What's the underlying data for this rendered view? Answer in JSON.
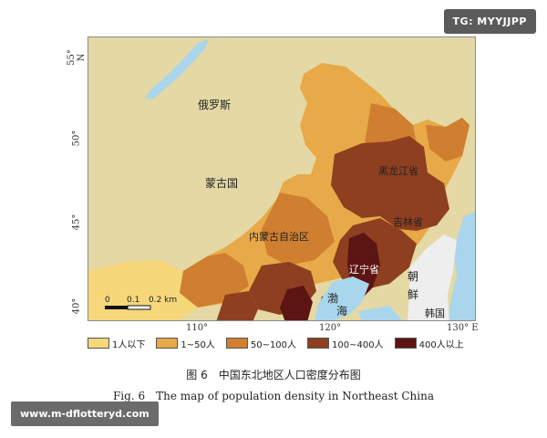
{
  "watermarks": {
    "top_right": "TG: MYYJJPP",
    "bottom_left": "www.m-dflotteryd.com"
  },
  "map": {
    "regions": {
      "russia": "俄罗斯",
      "mongolia": "蒙古国",
      "inner_mongolia": "内蒙古自治区",
      "heilongjiang": "黑龙江省",
      "jilin": "吉林省",
      "liaoning": "辽宁省",
      "korea_1": "朝",
      "korea_2": "鲜",
      "korea_south": "韩国",
      "bohai_1": "渤",
      "bohai_2": "海"
    },
    "scale_bar": {
      "ticks": [
        "0",
        "0.1",
        "0.2 km"
      ]
    },
    "lat_labels": [
      "55° N",
      "50°",
      "45°",
      "40°"
    ],
    "lon_labels": [
      "110°",
      "120°",
      "130° E"
    ],
    "colors": {
      "background": "#e4d8a4",
      "water": "#a9d6ec",
      "class_1": "#f6d77a",
      "class_2": "#e8a948",
      "class_3": "#cf7f2f",
      "class_4": "#8d3f1f",
      "class_5": "#5c1512",
      "korea": "#eeeeee"
    }
  },
  "legend": [
    {
      "label": "1人以下",
      "color": "#f6d77a"
    },
    {
      "label": "1~50人",
      "color": "#e8a948"
    },
    {
      "label": "50~100人",
      "color": "#cf7f2f"
    },
    {
      "label": "100~400人",
      "color": "#8d3f1f"
    },
    {
      "label": "400人以上",
      "color": "#5c1512"
    }
  ],
  "caption": {
    "zh": "图 6　中国东北地区人口密度分布图",
    "en": "Fig. 6　The map of population density in Northeast China"
  }
}
